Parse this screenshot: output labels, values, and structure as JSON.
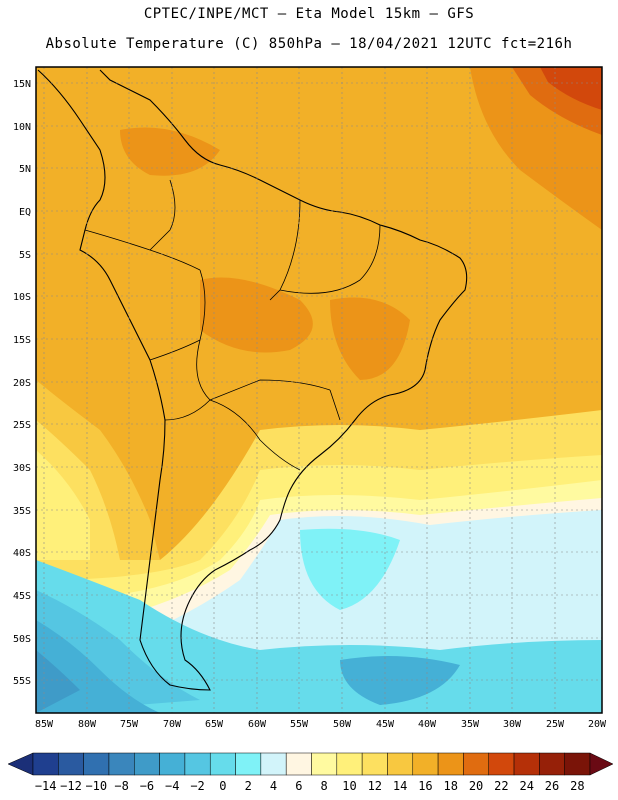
{
  "header": {
    "line1": "CPTEC/INPE/MCT –  Eta Model 15km – GFS",
    "line2": "Absolute Temperature (C) 850hPa – 18/04/2021 12UTC fct=216h"
  },
  "map": {
    "lon_range": [
      -87,
      -19
    ],
    "lat_range": [
      -59,
      17
    ],
    "lat_ticks": [
      "15N",
      "10N",
      "5N",
      "EQ",
      "5S",
      "10S",
      "15S",
      "20S",
      "25S",
      "30S",
      "35S",
      "40S",
      "45S",
      "50S",
      "55S"
    ],
    "lon_ticks": [
      "85W",
      "80W",
      "75W",
      "70W",
      "65W",
      "60W",
      "55W",
      "50W",
      "45W",
      "40W",
      "35W",
      "30W",
      "25W",
      "20W"
    ]
  },
  "colorbar": {
    "labels": [
      "-14",
      "-12",
      "-10",
      "-8",
      "-6",
      "-4",
      "-2",
      "0",
      "2",
      "4",
      "6",
      "8",
      "10",
      "12",
      "14",
      "16",
      "18",
      "20",
      "22",
      "24",
      "26",
      "28"
    ],
    "colors": [
      "#1f3f8f",
      "#2a5aa0",
      "#3070b0",
      "#3a86bc",
      "#3f9bc8",
      "#45b0d6",
      "#55c6e2",
      "#66dceb",
      "#7ff2f7",
      "#d2f4fa",
      "#fff6e2",
      "#fffaa0",
      "#fff07a",
      "#fde060",
      "#f8c840",
      "#f2b028",
      "#ec9418",
      "#e06c10",
      "#d2480c",
      "#b53008",
      "#962008",
      "#7a1408"
    ],
    "unit": "C"
  }
}
